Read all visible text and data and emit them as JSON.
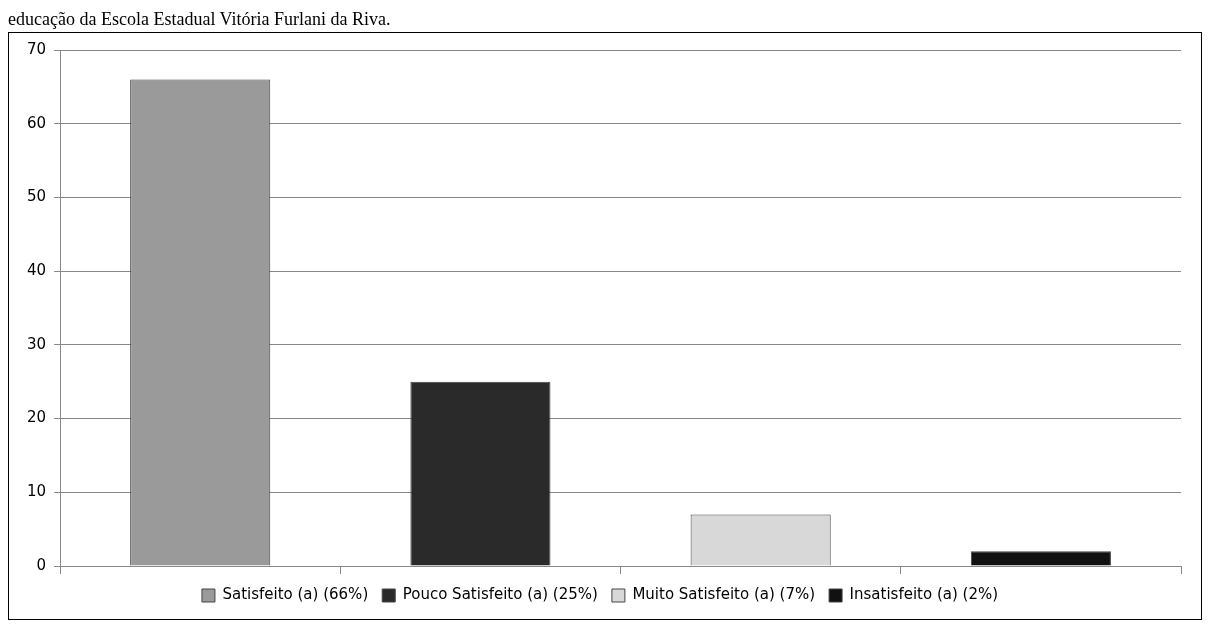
{
  "chart_data": {
    "type": "bar",
    "title": "educação da Escola Estadual Vitória Furlani da Riva.",
    "categories": [
      null,
      null,
      null,
      null
    ],
    "series": [
      {
        "name": "Satisfeito (a) (66%)",
        "color": "#9a9a9a",
        "values": [
          66,
          null,
          null,
          null
        ]
      },
      {
        "name": "Pouco Satisfeito (a) (25%)",
        "color": "#2a2a2a",
        "values": [
          null,
          25,
          null,
          null
        ]
      },
      {
        "name": "Muito Satisfeito (a) (7%)",
        "color": "#d8d8d8",
        "values": [
          null,
          null,
          7,
          null
        ]
      },
      {
        "name": "Insatisfeito (a) (2%)",
        "color": "#111111",
        "values": [
          null,
          null,
          null,
          2
        ]
      }
    ],
    "ylim": [
      0,
      70
    ],
    "yticks": [
      0,
      10,
      20,
      30,
      40,
      50,
      60,
      70
    ],
    "grid": "y",
    "legend": "bottom"
  }
}
